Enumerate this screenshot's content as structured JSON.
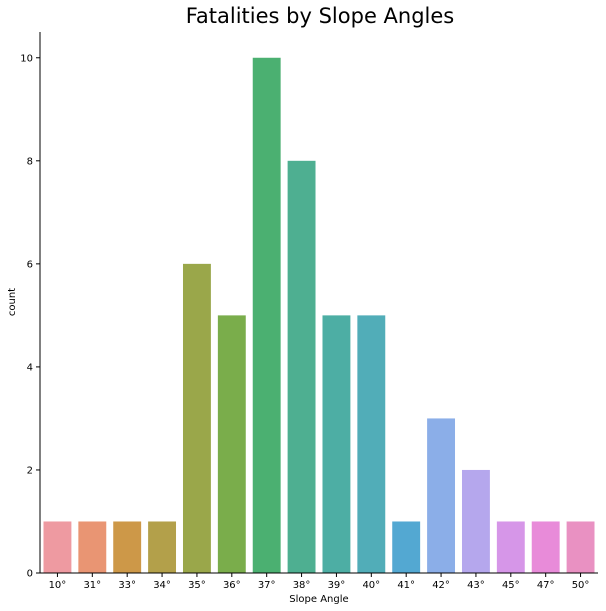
{
  "chart_data": {
    "type": "bar",
    "title": "Fatalities by Slope Angles",
    "xlabel": "Slope Angle",
    "ylabel": "count",
    "categories": [
      "10°",
      "31°",
      "33°",
      "34°",
      "35°",
      "36°",
      "37°",
      "38°",
      "39°",
      "40°",
      "41°",
      "42°",
      "43°",
      "45°",
      "47°",
      "50°"
    ],
    "values": [
      1,
      1,
      1,
      1,
      6,
      5,
      10,
      8,
      5,
      5,
      1,
      3,
      2,
      1,
      1,
      1
    ],
    "colors": [
      "#ee9aa1",
      "#e99573",
      "#cd9848",
      "#b3a04a",
      "#9aa74a",
      "#7aad4b",
      "#4bb071",
      "#4eaf91",
      "#4daea4",
      "#51adb8",
      "#53a8d2",
      "#8baee8",
      "#b5a7ed",
      "#d696e8",
      "#e88bd9",
      "#e991c2"
    ],
    "ylim": [
      0,
      10.5
    ],
    "yticks": [
      0,
      2,
      4,
      6,
      8,
      10
    ],
    "grid": false,
    "legend": "none"
  }
}
